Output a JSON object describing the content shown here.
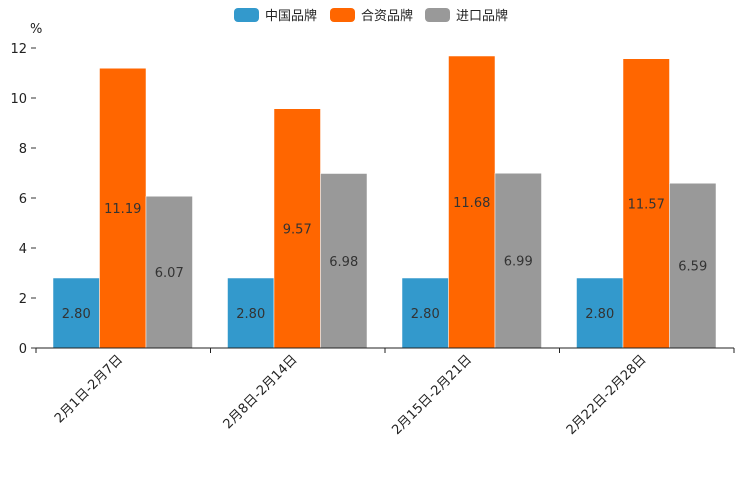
{
  "chart_data": {
    "type": "bar",
    "title": "",
    "xlabel": "",
    "ylabel": "%",
    "ylim": [
      0,
      12
    ],
    "yticks": [
      0,
      2,
      4,
      6,
      8,
      10,
      12
    ],
    "grid": false,
    "legend_position": "top-center",
    "categories": [
      "2月1日-2月7日",
      "2月8日-2月14日",
      "2月15日-2月21日",
      "2月22日-2月28日"
    ],
    "series": [
      {
        "name": "中国品牌",
        "color": "#3399cc",
        "values": [
          2.8,
          2.8,
          2.8,
          2.8
        ],
        "labels": [
          "2.80",
          "2.80",
          "2.80",
          "2.80"
        ]
      },
      {
        "name": "合资品牌",
        "color": "#ff6600",
        "values": [
          11.19,
          9.57,
          11.68,
          11.57
        ],
        "labels": [
          "11.19",
          "9.57",
          "11.68",
          "11.57"
        ]
      },
      {
        "name": "进口品牌",
        "color": "#999999",
        "values": [
          6.07,
          6.98,
          6.99,
          6.59
        ],
        "labels": [
          "6.07",
          "6.98",
          "6.99",
          "6.59"
        ]
      }
    ]
  }
}
